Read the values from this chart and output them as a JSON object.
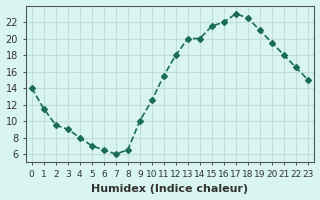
{
  "x": [
    0,
    1,
    2,
    3,
    4,
    5,
    6,
    7,
    8,
    9,
    10,
    11,
    12,
    13,
    14,
    15,
    16,
    17,
    18,
    19,
    20,
    21,
    22,
    23
  ],
  "y": [
    14,
    11.5,
    9.5,
    9,
    8,
    7,
    6.5,
    6,
    6.5,
    10,
    12.5,
    15.5,
    18,
    20,
    20,
    21.5,
    22,
    23,
    22.5,
    21,
    19.5,
    18,
    16.5,
    15
  ],
  "line_color": "#1a6b5a",
  "marker": "D",
  "marker_size": 3,
  "line_width": 1.2,
  "bg_color": "#d8f5f0",
  "grid_color": "#c0ddd8",
  "xlabel": "Humidex (Indice chaleur)",
  "ylabel": "",
  "xlim": [
    -0.5,
    23.5
  ],
  "ylim": [
    5,
    24
  ],
  "yticks": [
    6,
    8,
    10,
    12,
    14,
    16,
    18,
    20,
    22
  ],
  "xtick_labels": [
    "0",
    "1",
    "2",
    "3",
    "4",
    "5",
    "6",
    "7",
    "8",
    "9",
    "10",
    "11",
    "12",
    "13",
    "14",
    "15",
    "16",
    "17",
    "18",
    "19",
    "20",
    "21",
    "22",
    "23"
  ],
  "xlabel_fontsize": 8,
  "tick_fontsize": 7,
  "title_fontsize": 7
}
